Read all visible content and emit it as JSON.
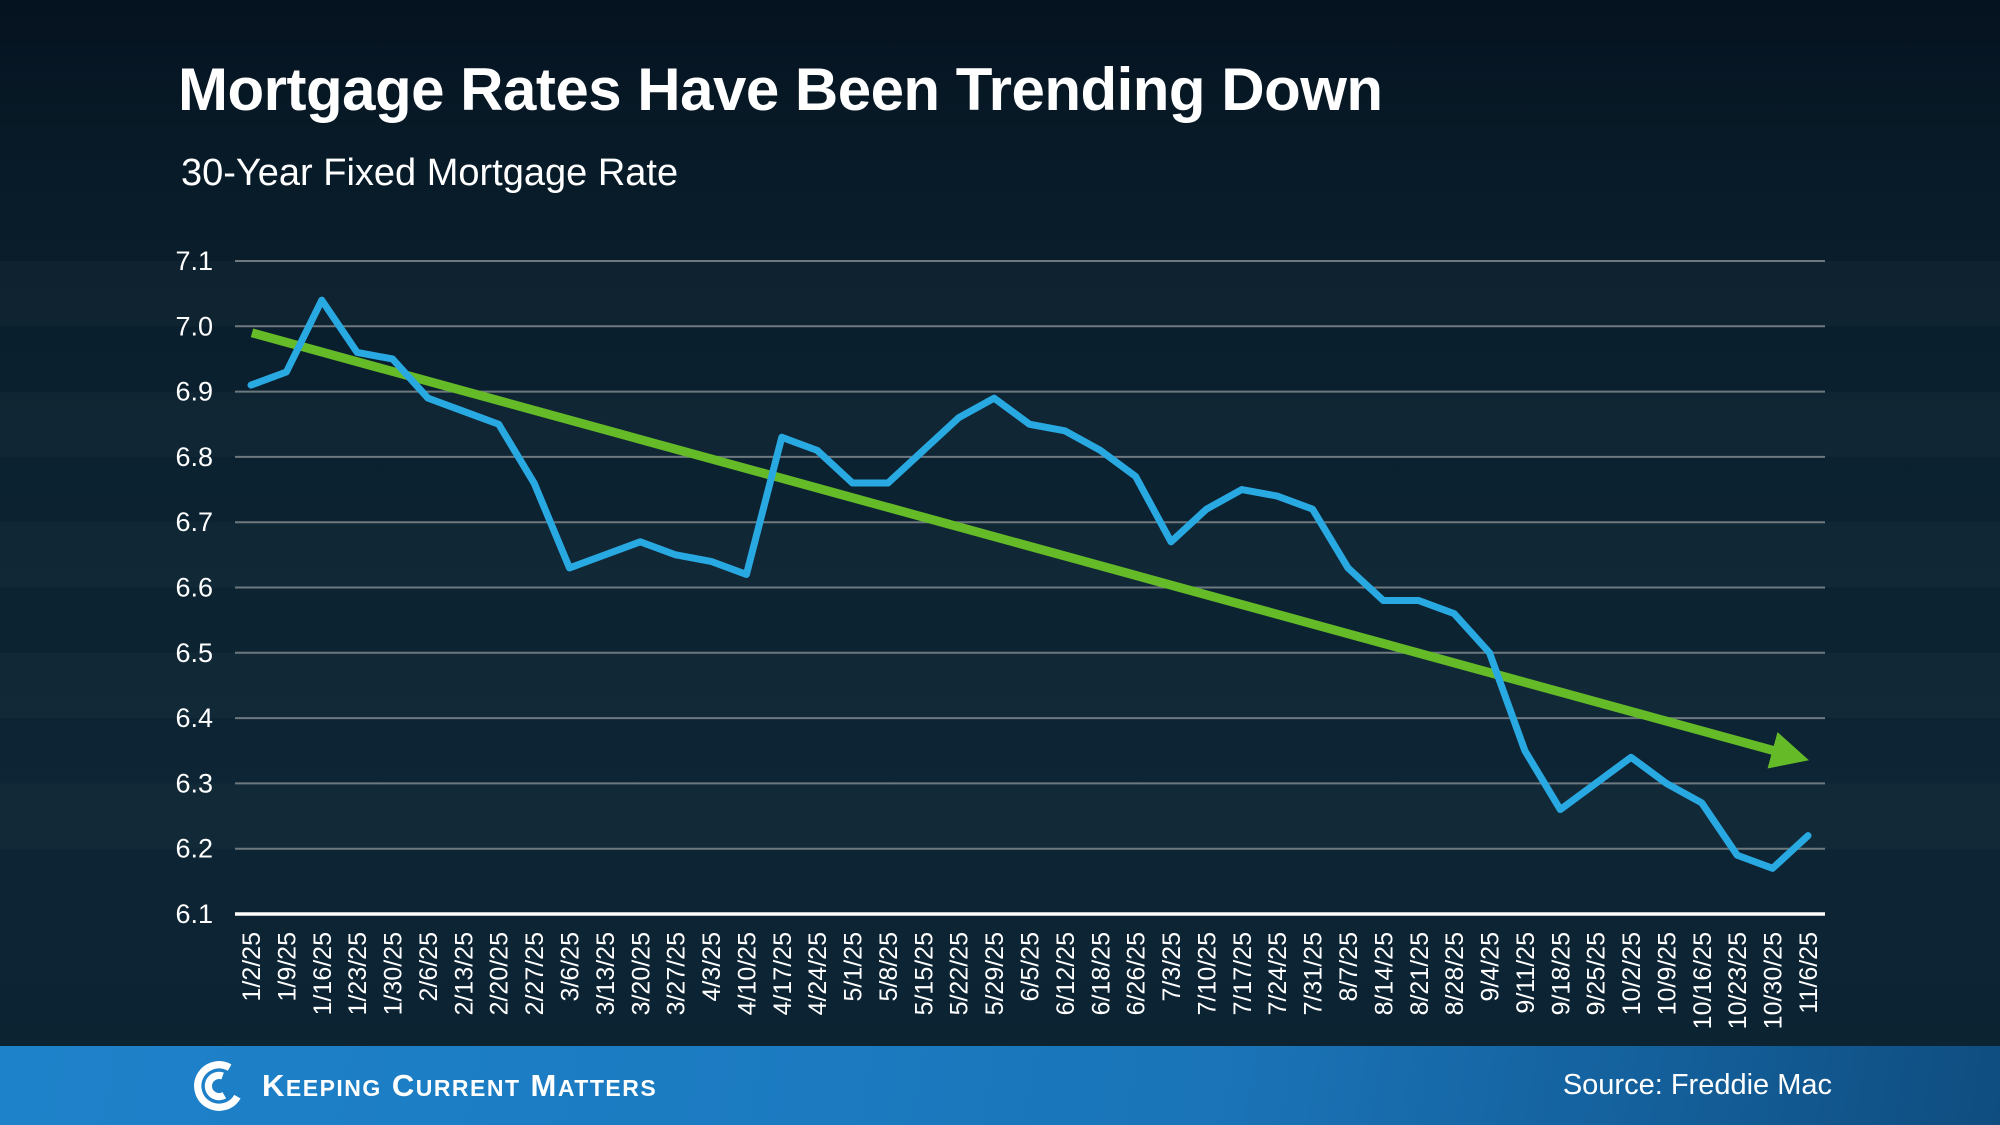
{
  "title": "Mortgage Rates Have Been Trending Down",
  "subtitle": "30-Year Fixed Mortgage Rate",
  "source_label": "Source: Freddie Mac",
  "brand": {
    "name": "Keeping Current Matters",
    "words": [
      "Keeping",
      "Current",
      "Matters"
    ],
    "logo_icon": "kcm-swirl-icon"
  },
  "colors": {
    "background": "#0c2232",
    "rate_line": "#29a9e1",
    "trend_arrow": "#65ba28",
    "gridline": "#6e797f",
    "axis_line": "#ffffff",
    "text": "#ffffff",
    "footer_blue": "#1b7ac0"
  },
  "chart_data": {
    "type": "line",
    "title": "Mortgage Rates Have Been Trending Down",
    "subtitle": "30-Year Fixed Mortgage Rate",
    "xlabel": "",
    "ylabel": "",
    "ylim": [
      6.1,
      7.1
    ],
    "yticks": [
      7.1,
      7.0,
      6.9,
      6.8,
      6.7,
      6.6,
      6.5,
      6.4,
      6.3,
      6.2,
      6.1
    ],
    "grid": true,
    "legend_position": "none",
    "x": [
      "1/2/25",
      "1/9/25",
      "1/16/25",
      "1/23/25",
      "1/30/25",
      "2/6/25",
      "2/13/25",
      "2/20/25",
      "2/27/25",
      "3/6/25",
      "3/13/25",
      "3/20/25",
      "3/27/25",
      "4/3/25",
      "4/10/25",
      "4/17/25",
      "4/24/25",
      "5/1/25",
      "5/8/25",
      "5/15/25",
      "5/22/25",
      "5/29/25",
      "6/5/25",
      "6/12/25",
      "6/18/25",
      "6/26/25",
      "7/3/25",
      "7/10/25",
      "7/17/25",
      "7/24/25",
      "7/31/25",
      "8/7/25",
      "8/14/25",
      "8/21/25",
      "8/28/25",
      "9/4/25",
      "9/11/25",
      "9/18/25",
      "9/25/25",
      "10/2/25",
      "10/9/25",
      "10/16/25",
      "10/23/25",
      "10/30/25",
      "11/6/25"
    ],
    "series": [
      {
        "name": "30-Year Fixed Mortgage Rate",
        "color": "#29a9e1",
        "values": [
          6.91,
          6.93,
          7.04,
          6.96,
          6.95,
          6.89,
          6.87,
          6.85,
          6.76,
          6.63,
          6.65,
          6.67,
          6.65,
          6.64,
          6.62,
          6.83,
          6.81,
          6.76,
          6.76,
          6.81,
          6.86,
          6.89,
          6.85,
          6.84,
          6.81,
          6.77,
          6.67,
          6.72,
          6.75,
          6.74,
          6.72,
          6.63,
          6.58,
          6.58,
          6.56,
          6.5,
          6.35,
          6.26,
          6.3,
          6.34,
          6.3,
          6.27,
          6.19,
          6.17,
          6.22
        ]
      },
      {
        "name": "Downward trend arrow",
        "type": "trend-arrow",
        "color": "#65ba28",
        "start_value": 6.99,
        "end_value": 6.34
      }
    ]
  }
}
